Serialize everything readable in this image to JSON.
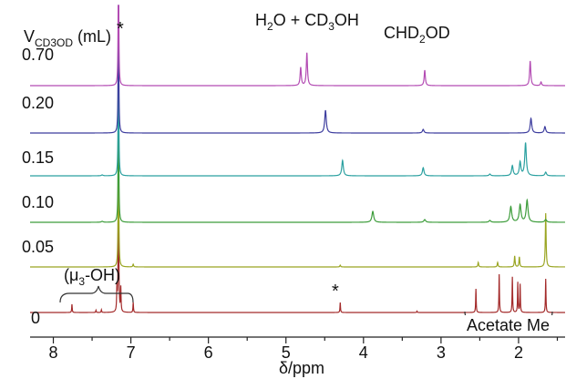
{
  "chart_data": {
    "type": "line",
    "title": "",
    "xlabel": "δ/ppm",
    "ylabel": "",
    "xlim": [
      8.3,
      1.4
    ],
    "x_reversed": true,
    "xticks": [
      "8",
      "7",
      "6",
      "5",
      "4",
      "3",
      "2"
    ],
    "xtick_values": [
      8,
      7,
      6,
      5,
      4,
      3,
      2
    ],
    "legend_title": "VCD3OD (mL)",
    "legend_title_parts": {
      "base": "V",
      "sub": "CD3OD",
      "unit": " (mL)"
    },
    "series": [
      {
        "name": "0",
        "color": "#a32a2a",
        "peaks": [
          [
            7.76,
            0.09
          ],
          [
            7.45,
            0.025
          ],
          [
            7.38,
            0.03
          ],
          [
            7.18,
            0.26
          ],
          [
            7.16,
            2.0
          ],
          [
            7.13,
            0.26
          ],
          [
            6.97,
            0.11
          ],
          [
            4.3,
            0.11
          ],
          [
            2.55,
            0.26
          ],
          [
            2.25,
            0.42
          ],
          [
            2.08,
            0.39
          ],
          [
            2.01,
            0.33
          ],
          [
            1.98,
            0.31
          ],
          [
            1.65,
            0.37
          ],
          [
            3.31,
            0.015
          ]
        ],
        "width": 0.004
      },
      {
        "name": "0.05",
        "color": "#9aa522",
        "peaks": [
          [
            7.16,
            2.0
          ],
          [
            6.97,
            0.03
          ],
          [
            4.3,
            0.02
          ],
          [
            2.52,
            0.05
          ],
          [
            2.27,
            0.05
          ],
          [
            2.05,
            0.12
          ],
          [
            1.99,
            0.11
          ],
          [
            1.65,
            0.59
          ]
        ],
        "width": 0.006
      },
      {
        "name": "0.10",
        "color": "#3c9c3a",
        "peaks": [
          [
            7.16,
            2.0
          ],
          [
            7.37,
            0.01
          ],
          [
            3.88,
            0.12
          ],
          [
            3.21,
            0.03
          ],
          [
            2.37,
            0.02
          ],
          [
            2.1,
            0.17
          ],
          [
            1.98,
            0.19
          ],
          [
            1.89,
            0.24
          ],
          [
            1.65,
            0.03
          ]
        ],
        "width": 0.014
      },
      {
        "name": "0.15",
        "color": "#2aa0a0",
        "peaks": [
          [
            7.16,
            2.0
          ],
          [
            7.37,
            0.01
          ],
          [
            4.27,
            0.17
          ],
          [
            3.23,
            0.09
          ],
          [
            2.37,
            0.02
          ],
          [
            2.08,
            0.11
          ],
          [
            1.98,
            0.15
          ],
          [
            1.91,
            0.36
          ],
          [
            1.65,
            0.04
          ]
        ],
        "width": 0.012
      },
      {
        "name": "0.20",
        "color": "#3c3c9e",
        "peaks": [
          [
            7.16,
            2.0
          ],
          [
            4.49,
            0.25
          ],
          [
            3.23,
            0.04
          ],
          [
            1.84,
            0.16
          ],
          [
            1.66,
            0.07
          ]
        ],
        "width": 0.012
      },
      {
        "name": "0.70",
        "color": "#b34bb3",
        "peaks": [
          [
            7.16,
            2.0
          ],
          [
            4.73,
            0.36
          ],
          [
            4.81,
            0.2
          ],
          [
            3.21,
            0.17
          ],
          [
            1.85,
            0.27
          ],
          [
            1.71,
            0.04
          ]
        ],
        "width": 0.009
      }
    ],
    "annotations": {
      "h2o_label": {
        "parts": [
          "H",
          "2",
          "O + CD",
          "3",
          "OH"
        ]
      },
      "chd2od_label": {
        "parts": [
          "CHD",
          "2",
          "OD"
        ]
      },
      "star_top": "*",
      "star_mid": "*",
      "mu3_label": {
        "parts": [
          "(μ",
          "3",
          "-OH)"
        ]
      },
      "acetate_label": "Acetate Me"
    }
  }
}
